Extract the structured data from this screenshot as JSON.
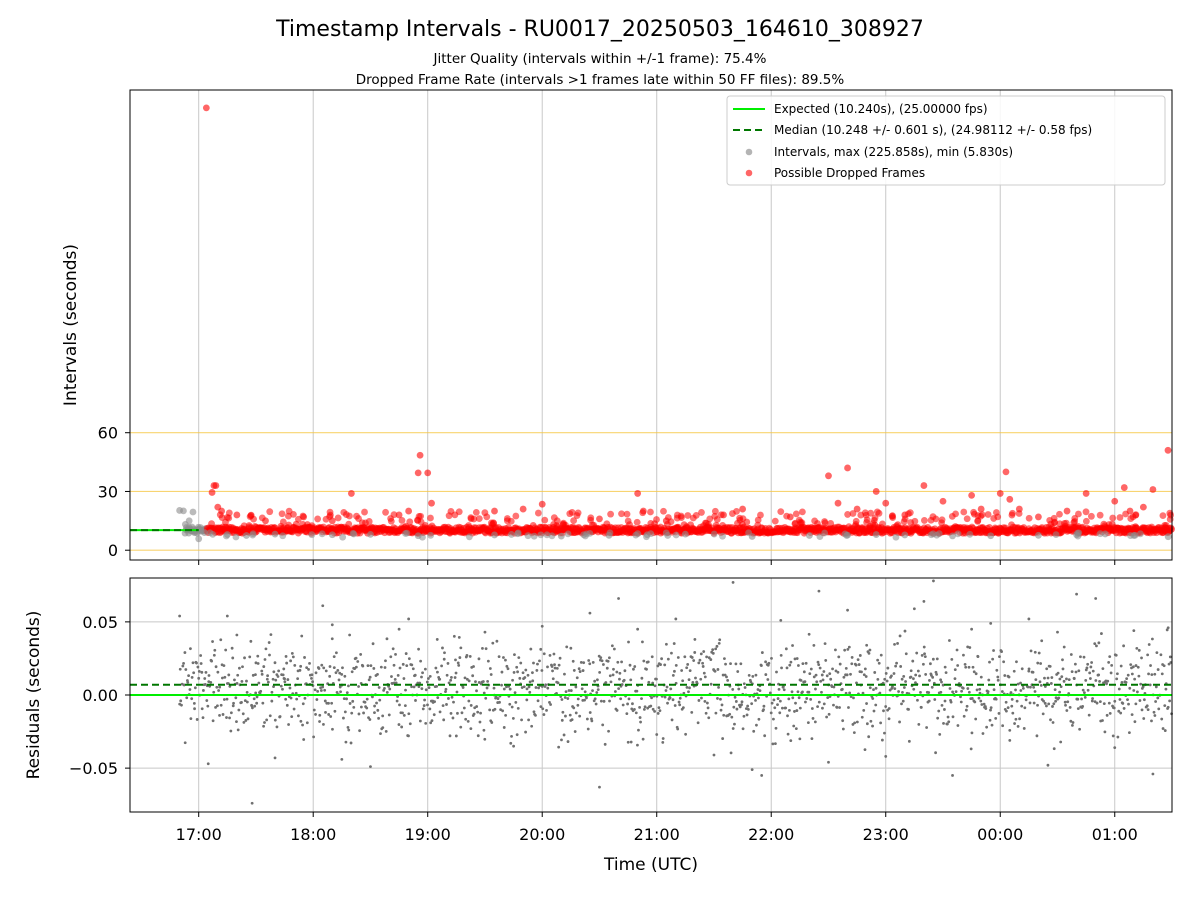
{
  "figure": {
    "title": "Timestamp Intervals - RU0017_20250503_164610_308927",
    "subtitle1": "Jitter Quality (intervals within +/-1 frame): 75.4%",
    "subtitle2": "Dropped Frame Rate (intervals >1 frames late within 50 FF files): 89.5%"
  },
  "chart_data": [
    {
      "type": "scatter",
      "panel": "intervals",
      "ylabel": "Intervals (seconds)",
      "xlabel": "",
      "x_range": [
        "16:24",
        "01:30"
      ],
      "ylim": [
        -5,
        235
      ],
      "yticks": [
        0,
        30,
        60
      ],
      "y_tick_labels": [
        "0",
        "30",
        "60"
      ],
      "reference_lines": [
        {
          "y": 0,
          "color": "#f5c542"
        },
        {
          "y": 30,
          "color": "#f5c542"
        },
        {
          "y": 60,
          "color": "#f5c542"
        }
      ],
      "grid": "vertical",
      "legend": {
        "placement": "top-right",
        "entries": [
          {
            "label": "Expected (10.240s), (25.00000 fps)",
            "style": "solid-line",
            "color": "#00ee00"
          },
          {
            "label": "Median (10.248 +/- 0.601 s), (24.98112 +/- 0.58 fps)",
            "style": "dashed-line",
            "color": "#007700"
          },
          {
            "label": "Intervals, max (225.858s), min (5.830s)",
            "style": "marker",
            "color": "#8c8c8c"
          },
          {
            "label": "Possible Dropped Frames",
            "style": "marker",
            "color": "#ff0000"
          }
        ]
      },
      "expected_interval": 10.24,
      "median_interval": 10.248,
      "series": [
        {
          "name": "Intervals, max (225.858s), min (5.830s)",
          "color": "#8c8c8c",
          "x": [
            "16:50",
            "16:52",
            "16:53",
            "16:55",
            "16:57",
            "17:00",
            "17:03",
            "17:15",
            "17:25",
            "17:40",
            "18:10",
            "18:30",
            "18:55",
            "19:35",
            "20:10",
            "20:35",
            "20:55",
            "21:15",
            "21:50",
            "22:20",
            "22:40",
            "22:55",
            "23:10",
            "23:35",
            "23:55",
            "00:20",
            "00:40",
            "00:55",
            "01:10",
            "01:28"
          ],
          "y": [
            20.3,
            20.1,
            13.2,
            15.0,
            19.5,
            5.83,
            9.0,
            8.0,
            7.5,
            8.2,
            7.9,
            8.1,
            7.4,
            7.8,
            7.2,
            7.6,
            7.9,
            8.2,
            7.0,
            7.5,
            7.7,
            8.0,
            7.8,
            7.3,
            7.4,
            7.6,
            7.9,
            8.3,
            7.5,
            6.9
          ]
        },
        {
          "name": "Possible Dropped Frames",
          "color": "#ff0000",
          "x": [
            "17:04",
            "17:07",
            "17:08",
            "17:09",
            "17:10",
            "17:12",
            "17:20",
            "17:35",
            "17:55",
            "18:10",
            "18:20",
            "18:45",
            "18:50",
            "18:55",
            "18:56",
            "19:00",
            "19:02",
            "19:35",
            "19:50",
            "20:00",
            "20:30",
            "20:50",
            "20:53",
            "21:05",
            "21:35",
            "21:45",
            "22:10",
            "22:30",
            "22:35",
            "22:40",
            "22:45",
            "22:55",
            "23:00",
            "23:10",
            "23:20",
            "23:30",
            "23:45",
            "23:50",
            "00:00",
            "00:03",
            "00:05",
            "00:10",
            "00:20",
            "00:35",
            "00:45",
            "01:00",
            "01:05",
            "01:08",
            "01:15",
            "01:20",
            "01:30"
          ],
          "y": [
            225.858,
            29.5,
            33.0,
            33.0,
            22.0,
            20.0,
            18.0,
            15.0,
            17.0,
            15.0,
            29.0,
            18.0,
            20.0,
            39.5,
            48.5,
            39.5,
            24.0,
            20.0,
            21.0,
            23.5,
            16.0,
            29.0,
            20.0,
            15.0,
            18.0,
            21.0,
            17.0,
            38.0,
            24.0,
            42.0,
            21.0,
            30.0,
            24.0,
            18.0,
            33.0,
            25.0,
            28.0,
            21.0,
            29.0,
            40.0,
            26.0,
            21.0,
            17.0,
            20.0,
            29.0,
            25.0,
            32.0,
            20.0,
            22.0,
            31.0,
            51.0
          ]
        }
      ]
    },
    {
      "type": "scatter",
      "panel": "residuals",
      "ylabel": "Residuals (seconds)",
      "xlabel": "Time (UTC)",
      "x_range": [
        "16:24",
        "01:30"
      ],
      "ylim": [
        -0.08,
        0.08
      ],
      "yticks": [
        -0.05,
        0.0,
        0.05
      ],
      "y_tick_labels": [
        "−0.05",
        "0.00",
        "0.05"
      ],
      "x_tick_labels": [
        "17:00",
        "18:00",
        "19:00",
        "20:00",
        "21:00",
        "22:00",
        "23:00",
        "00:00",
        "01:00"
      ],
      "grid": "both",
      "expected_residual": 0.0,
      "median_residual": 0.007,
      "series": [
        {
          "name": "",
          "color": "#707070",
          "x": [
            "16:50",
            "17:05",
            "17:15",
            "17:20",
            "17:28",
            "17:30",
            "17:40",
            "17:45",
            "18:05",
            "18:10",
            "18:15",
            "18:30",
            "18:45",
            "18:50",
            "19:05",
            "19:15",
            "19:30",
            "19:45",
            "20:00",
            "20:15",
            "20:25",
            "20:30",
            "20:40",
            "20:50",
            "21:00",
            "21:10",
            "21:20",
            "21:30",
            "21:40",
            "21:50",
            "21:55",
            "22:05",
            "22:15",
            "22:25",
            "22:30",
            "22:40",
            "22:50",
            "23:00",
            "23:15",
            "23:20",
            "23:25",
            "23:35",
            "23:45",
            "23:55",
            "00:05",
            "00:15",
            "00:25",
            "00:30",
            "00:40",
            "00:50",
            "01:00",
            "01:10",
            "01:20",
            "01:28"
          ],
          "y": [
            0.054,
            -0.047,
            0.054,
            0.041,
            -0.074,
            0.022,
            -0.043,
            0.011,
            0.061,
            0.048,
            -0.044,
            -0.049,
            0.045,
            0.052,
            0.038,
            -0.028,
            0.043,
            -0.035,
            0.047,
            0.032,
            0.056,
            -0.063,
            0.066,
            0.045,
            -0.027,
            0.052,
            0.038,
            -0.041,
            0.077,
            -0.051,
            -0.055,
            0.051,
            -0.03,
            0.071,
            -0.046,
            0.058,
            0.034,
            -0.042,
            0.059,
            0.064,
            0.078,
            -0.055,
            0.045,
            0.049,
            -0.031,
            0.052,
            -0.048,
            0.043,
            0.069,
            0.066,
            -0.036,
            0.044,
            -0.054,
            0.046
          ]
        }
      ]
    }
  ]
}
